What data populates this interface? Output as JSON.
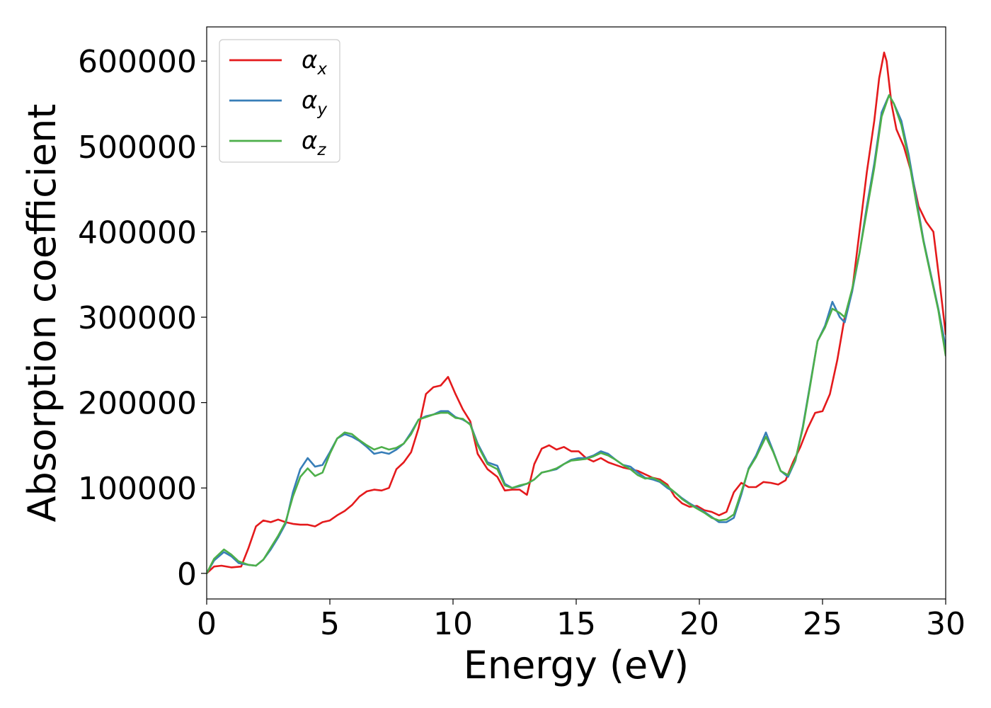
{
  "chart_data": {
    "type": "line",
    "xlabel": "Energy (eV)",
    "ylabel": "Absorption coefficient",
    "xlim": [
      0,
      30
    ],
    "ylim": [
      -30000,
      640000
    ],
    "xticks": [
      0,
      5,
      10,
      15,
      20,
      25,
      30
    ],
    "yticks": [
      0,
      100000,
      200000,
      300000,
      400000,
      500000,
      600000
    ],
    "grid": false,
    "legend_position": "upper-left",
    "series": [
      {
        "name": "αx",
        "label_base": "α",
        "label_sub": "x",
        "color": "#e41a1c",
        "x": [
          0,
          0.3,
          0.6,
          1.0,
          1.4,
          1.7,
          2.0,
          2.3,
          2.6,
          2.9,
          3.2,
          3.5,
          3.8,
          4.1,
          4.4,
          4.7,
          5.0,
          5.3,
          5.6,
          5.9,
          6.2,
          6.5,
          6.8,
          7.1,
          7.4,
          7.7,
          8.0,
          8.3,
          8.6,
          8.9,
          9.2,
          9.5,
          9.8,
          10.1,
          10.4,
          10.7,
          11.0,
          11.4,
          11.8,
          12.1,
          12.4,
          12.7,
          13.0,
          13.3,
          13.6,
          13.9,
          14.2,
          14.5,
          14.8,
          15.1,
          15.4,
          15.7,
          16.0,
          16.3,
          16.6,
          16.9,
          17.2,
          17.5,
          17.8,
          18.1,
          18.4,
          18.7,
          19.0,
          19.3,
          19.6,
          19.9,
          20.2,
          20.5,
          20.8,
          21.1,
          21.4,
          21.7,
          22.0,
          22.3,
          22.6,
          22.9,
          23.2,
          23.5,
          23.8,
          24.1,
          24.4,
          24.7,
          25.0,
          25.3,
          25.6,
          25.9,
          26.2,
          26.5,
          26.8,
          27.1,
          27.3,
          27.5,
          27.6,
          27.8,
          28.0,
          28.3,
          28.6,
          28.9,
          29.2,
          29.5,
          29.8,
          30.0
        ],
        "y": [
          0,
          8000,
          9000,
          7000,
          8000,
          30000,
          55000,
          62000,
          60000,
          63000,
          60000,
          58000,
          57000,
          57000,
          55000,
          60000,
          62000,
          68000,
          73000,
          80000,
          90000,
          96000,
          98000,
          97000,
          100000,
          122000,
          130000,
          142000,
          170000,
          210000,
          218000,
          220000,
          230000,
          210000,
          192000,
          178000,
          140000,
          122000,
          113000,
          97000,
          98000,
          98000,
          92000,
          128000,
          146000,
          150000,
          145000,
          148000,
          143000,
          143000,
          135000,
          131000,
          135000,
          130000,
          127000,
          124000,
          122000,
          120000,
          116000,
          112000,
          110000,
          104000,
          90000,
          82000,
          78000,
          79000,
          74000,
          72000,
          68000,
          72000,
          95000,
          106000,
          101000,
          101000,
          107000,
          106000,
          104000,
          109000,
          130000,
          148000,
          170000,
          188000,
          190000,
          210000,
          250000,
          300000,
          330000,
          400000,
          470000,
          530000,
          580000,
          610000,
          600000,
          550000,
          520000,
          500000,
          470000,
          430000,
          412000,
          400000,
          330000,
          280000
        ]
      },
      {
        "name": "αy",
        "label_base": "α",
        "label_sub": "y",
        "color": "#377eb8",
        "x": [
          0,
          0.3,
          0.7,
          1.0,
          1.3,
          1.7,
          2.0,
          2.3,
          2.6,
          2.9,
          3.2,
          3.5,
          3.8,
          4.1,
          4.4,
          4.7,
          5.0,
          5.3,
          5.6,
          5.9,
          6.2,
          6.5,
          6.8,
          7.1,
          7.4,
          7.7,
          8.0,
          8.3,
          8.6,
          8.9,
          9.2,
          9.5,
          9.8,
          10.1,
          10.4,
          10.7,
          11.0,
          11.4,
          11.8,
          12.1,
          12.4,
          12.7,
          13.0,
          13.3,
          13.6,
          13.9,
          14.2,
          14.5,
          14.8,
          15.1,
          15.4,
          15.7,
          16.0,
          16.3,
          16.6,
          16.9,
          17.2,
          17.5,
          17.8,
          18.1,
          18.4,
          18.7,
          19.0,
          19.3,
          19.6,
          19.9,
          20.2,
          20.5,
          20.8,
          21.1,
          21.4,
          21.7,
          22.0,
          22.3,
          22.7,
          23.0,
          23.3,
          23.6,
          23.9,
          24.2,
          24.5,
          24.8,
          25.1,
          25.4,
          25.7,
          25.9,
          26.2,
          26.5,
          26.8,
          27.1,
          27.4,
          27.7,
          27.9,
          28.2,
          28.5,
          28.8,
          29.1,
          29.4,
          29.7,
          30.0
        ],
        "y": [
          0,
          15000,
          25000,
          20000,
          12000,
          10000,
          9000,
          16000,
          28000,
          42000,
          58000,
          95000,
          122000,
          135000,
          125000,
          127000,
          142000,
          158000,
          163000,
          160000,
          155000,
          148000,
          140000,
          142000,
          140000,
          145000,
          152000,
          165000,
          180000,
          184000,
          186000,
          190000,
          190000,
          183000,
          180000,
          175000,
          152000,
          130000,
          126000,
          105000,
          100000,
          102000,
          105000,
          110000,
          118000,
          120000,
          122000,
          128000,
          133000,
          135000,
          135000,
          138000,
          143000,
          140000,
          133000,
          127000,
          125000,
          118000,
          112000,
          110000,
          107000,
          100000,
          95000,
          88000,
          82000,
          77000,
          72000,
          66000,
          60000,
          60000,
          65000,
          92000,
          123000,
          138000,
          165000,
          143000,
          120000,
          113000,
          132000,
          172000,
          222000,
          272000,
          290000,
          318000,
          300000,
          294000,
          330000,
          375000,
          430000,
          480000,
          540000,
          560000,
          550000,
          530000,
          490000,
          440000,
          390000,
          350000,
          310000,
          265000
        ]
      },
      {
        "name": "αz",
        "label_base": "α",
        "label_sub": "z",
        "color": "#4daf4a",
        "x": [
          0,
          0.3,
          0.7,
          1.0,
          1.3,
          1.7,
          2.0,
          2.3,
          2.6,
          2.9,
          3.2,
          3.5,
          3.8,
          4.1,
          4.4,
          4.7,
          5.0,
          5.3,
          5.6,
          5.9,
          6.2,
          6.5,
          6.8,
          7.1,
          7.4,
          7.7,
          8.0,
          8.3,
          8.6,
          8.9,
          9.2,
          9.5,
          9.8,
          10.1,
          10.4,
          10.7,
          11.0,
          11.4,
          11.8,
          12.1,
          12.4,
          12.7,
          13.0,
          13.3,
          13.6,
          13.9,
          14.2,
          14.5,
          14.8,
          15.1,
          15.4,
          15.7,
          16.0,
          16.3,
          16.6,
          16.9,
          17.2,
          17.5,
          17.8,
          18.1,
          18.4,
          18.7,
          19.0,
          19.3,
          19.6,
          19.9,
          20.2,
          20.5,
          20.8,
          21.1,
          21.4,
          21.7,
          22.0,
          22.3,
          22.7,
          23.0,
          23.3,
          23.6,
          23.9,
          24.2,
          24.5,
          24.8,
          25.1,
          25.4,
          25.7,
          25.9,
          26.2,
          26.5,
          26.8,
          27.1,
          27.4,
          27.7,
          27.9,
          28.2,
          28.5,
          28.8,
          29.1,
          29.4,
          29.7,
          30.0
        ],
        "y": [
          0,
          17000,
          28000,
          22000,
          14000,
          10000,
          9000,
          16000,
          30000,
          44000,
          60000,
          90000,
          113000,
          123000,
          114000,
          118000,
          140000,
          158000,
          165000,
          163000,
          156000,
          150000,
          145000,
          148000,
          145000,
          147000,
          152000,
          163000,
          180000,
          183000,
          186000,
          188000,
          188000,
          182000,
          181000,
          174000,
          150000,
          128000,
          122000,
          103000,
          100000,
          103000,
          105000,
          110000,
          118000,
          120000,
          123000,
          128000,
          132000,
          133000,
          134000,
          137000,
          141000,
          138000,
          133000,
          127000,
          122000,
          115000,
          111000,
          112000,
          108000,
          102000,
          95000,
          87000,
          81000,
          76000,
          71000,
          65000,
          62000,
          63000,
          69000,
          95000,
          122000,
          136000,
          160000,
          142000,
          120000,
          115000,
          133000,
          170000,
          220000,
          272000,
          288000,
          310000,
          305000,
          300000,
          333000,
          375000,
          425000,
          475000,
          535000,
          560000,
          550000,
          525000,
          485000,
          435000,
          388000,
          348000,
          308000,
          255000
        ]
      }
    ]
  }
}
